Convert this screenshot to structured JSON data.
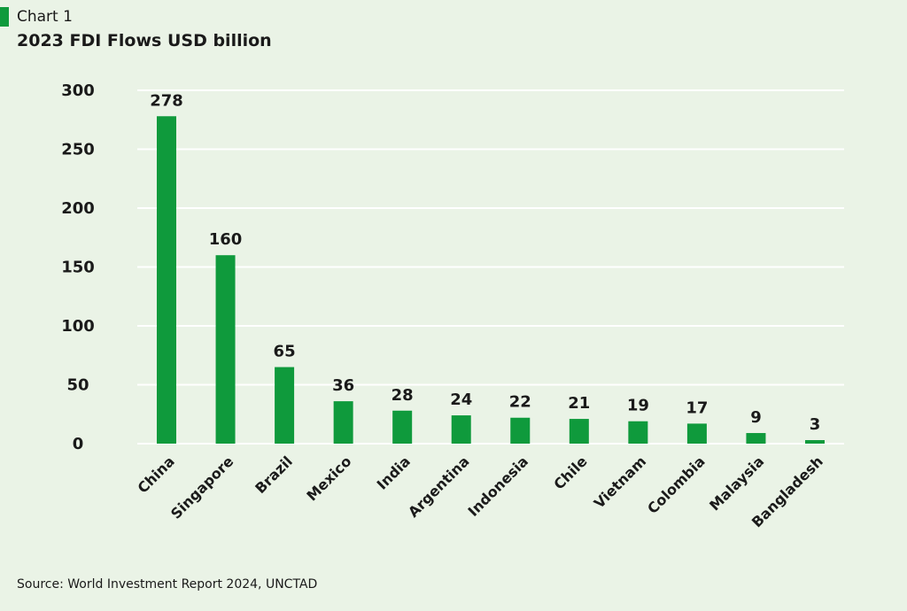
{
  "header": {
    "label": "Chart 1",
    "title": "2023 FDI Flows USD billion"
  },
  "colors": {
    "background": "#eaf3e6",
    "bar": "#0f9a3c",
    "accent": "#0f9a3c",
    "grid": "#ffffff"
  },
  "chart_data": {
    "type": "bar",
    "title": "2023 FDI Flows USD billion",
    "xlabel": "",
    "ylabel": "",
    "categories": [
      "China",
      "Singapore",
      "Brazil",
      "Mexico",
      "India",
      "Argentina",
      "Indonesia",
      "Chile",
      "Vietnam",
      "Colombia",
      "Malaysia",
      "Bangladesh"
    ],
    "values": [
      278,
      160,
      65,
      36,
      28,
      24,
      22,
      21,
      19,
      17,
      9,
      3
    ],
    "data_labels": [
      "278",
      "160",
      "65",
      "36",
      "28",
      "24",
      "22",
      "21",
      "19",
      "17",
      "9",
      "3"
    ],
    "ylim": [
      0,
      300
    ],
    "yticks": [
      0,
      50,
      100,
      150,
      200,
      250,
      300
    ],
    "grid": true,
    "legend": "none"
  },
  "source": "Source: World Investment Report 2024, UNCTAD"
}
